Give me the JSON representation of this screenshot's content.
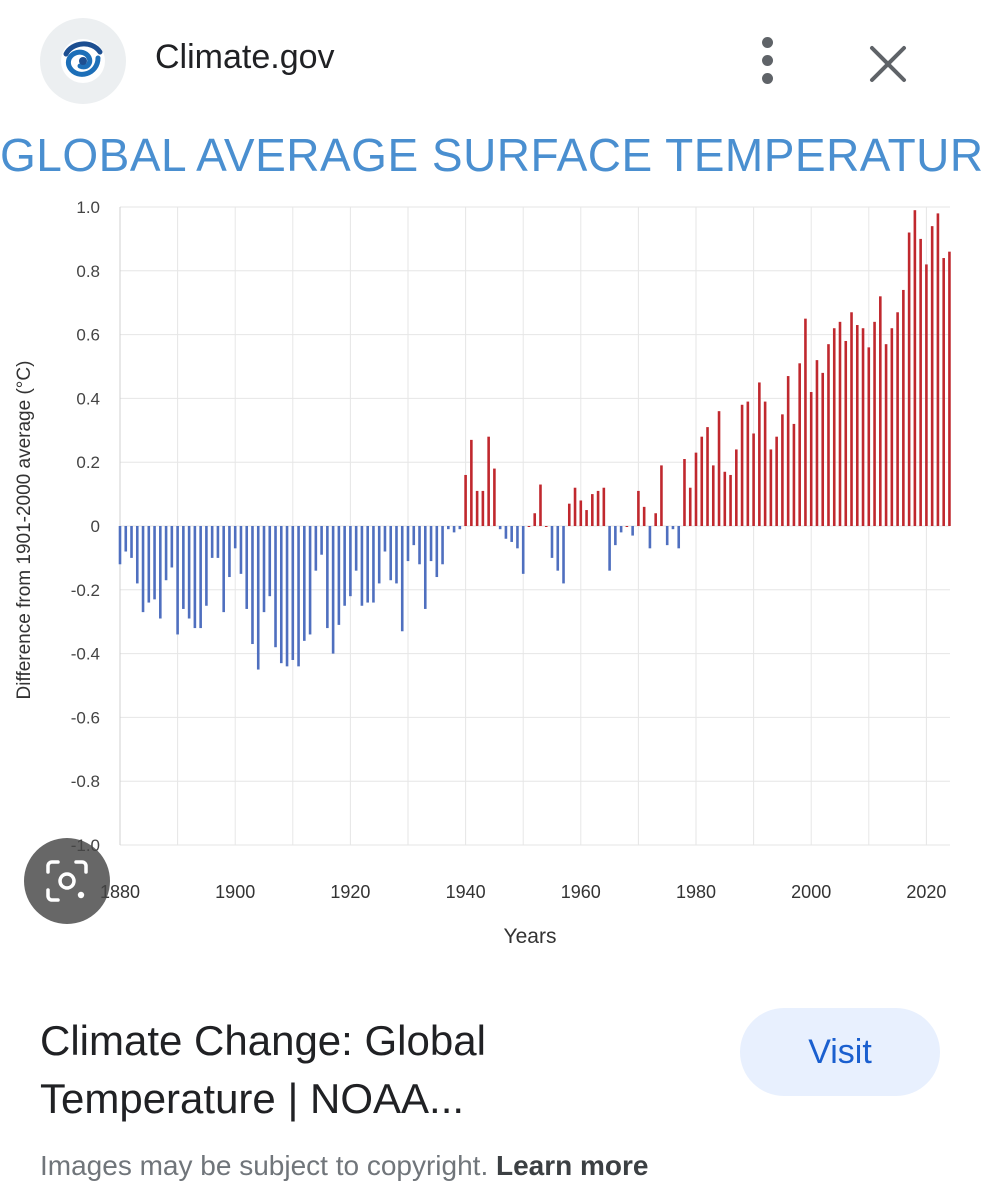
{
  "header": {
    "site_name": "Climate.gov",
    "logo_icon": "climate-gov-swirl-logo",
    "more_icon": "more-vert-icon",
    "close_icon": "close-icon"
  },
  "chart_data": {
    "type": "bar",
    "title": "GLOBAL AVERAGE SURFACE TEMPERATURE",
    "xlabel": "Years",
    "ylabel": "Difference from 1901-2000 average (°C)",
    "xlim": [
      1880,
      2023
    ],
    "ylim": [
      -1.0,
      1.0
    ],
    "x_ticks": [
      "1880",
      "1900",
      "1920",
      "1940",
      "1960",
      "1980",
      "2000",
      "2020"
    ],
    "y_ticks": [
      "1.0",
      "0.8",
      "0.6",
      "0.4",
      "0.2",
      "0",
      "-0.2",
      "-0.4",
      "-0.6",
      "-0.8",
      "-1.0"
    ],
    "grid": true,
    "positive_color": "#c0282e",
    "negative_color": "#4f6fbf",
    "start_year": 1880,
    "values": [
      -0.12,
      -0.08,
      -0.1,
      -0.18,
      -0.27,
      -0.24,
      -0.23,
      -0.29,
      -0.17,
      -0.13,
      -0.34,
      -0.26,
      -0.29,
      -0.32,
      -0.32,
      -0.25,
      -0.1,
      -0.1,
      -0.27,
      -0.16,
      -0.07,
      -0.15,
      -0.26,
      -0.37,
      -0.45,
      -0.27,
      -0.22,
      -0.38,
      -0.43,
      -0.44,
      -0.42,
      -0.44,
      -0.36,
      -0.34,
      -0.14,
      -0.09,
      -0.32,
      -0.4,
      -0.31,
      -0.25,
      -0.22,
      -0.14,
      -0.25,
      -0.24,
      -0.24,
      -0.18,
      -0.08,
      -0.17,
      -0.18,
      -0.33,
      -0.11,
      -0.06,
      -0.12,
      -0.26,
      -0.11,
      -0.16,
      -0.12,
      -0.01,
      -0.02,
      -0.01,
      0.16,
      0.27,
      0.11,
      0.11,
      0.28,
      0.18,
      -0.01,
      -0.04,
      -0.05,
      -0.07,
      -0.15,
      0.0,
      0.04,
      0.13,
      0.0,
      -0.1,
      -0.14,
      -0.18,
      0.07,
      0.12,
      0.08,
      0.05,
      0.1,
      0.11,
      0.12,
      -0.14,
      -0.06,
      -0.02,
      0.0,
      -0.03,
      0.11,
      0.06,
      -0.07,
      0.04,
      0.19,
      -0.06,
      -0.01,
      -0.07,
      0.21,
      0.12,
      0.23,
      0.28,
      0.31,
      0.19,
      0.36,
      0.17,
      0.16,
      0.24,
      0.38,
      0.39,
      0.29,
      0.45,
      0.39,
      0.24,
      0.28,
      0.35,
      0.47,
      0.32,
      0.51,
      0.65,
      0.42,
      0.52,
      0.48,
      0.57,
      0.62,
      0.64,
      0.58,
      0.67,
      0.63,
      0.62,
      0.56,
      0.64,
      0.72,
      0.57,
      0.62,
      0.67,
      0.74,
      0.92,
      0.99,
      0.9,
      0.82,
      0.94,
      0.98,
      0.84,
      0.86
    ]
  },
  "lens_icon": "google-lens-icon",
  "result": {
    "title": "Climate Change: Global Temperature | NOAA...",
    "visit_label": "Visit"
  },
  "footer": {
    "note_text": "Images may be subject to copyright.",
    "learn_more_label": "Learn more"
  }
}
